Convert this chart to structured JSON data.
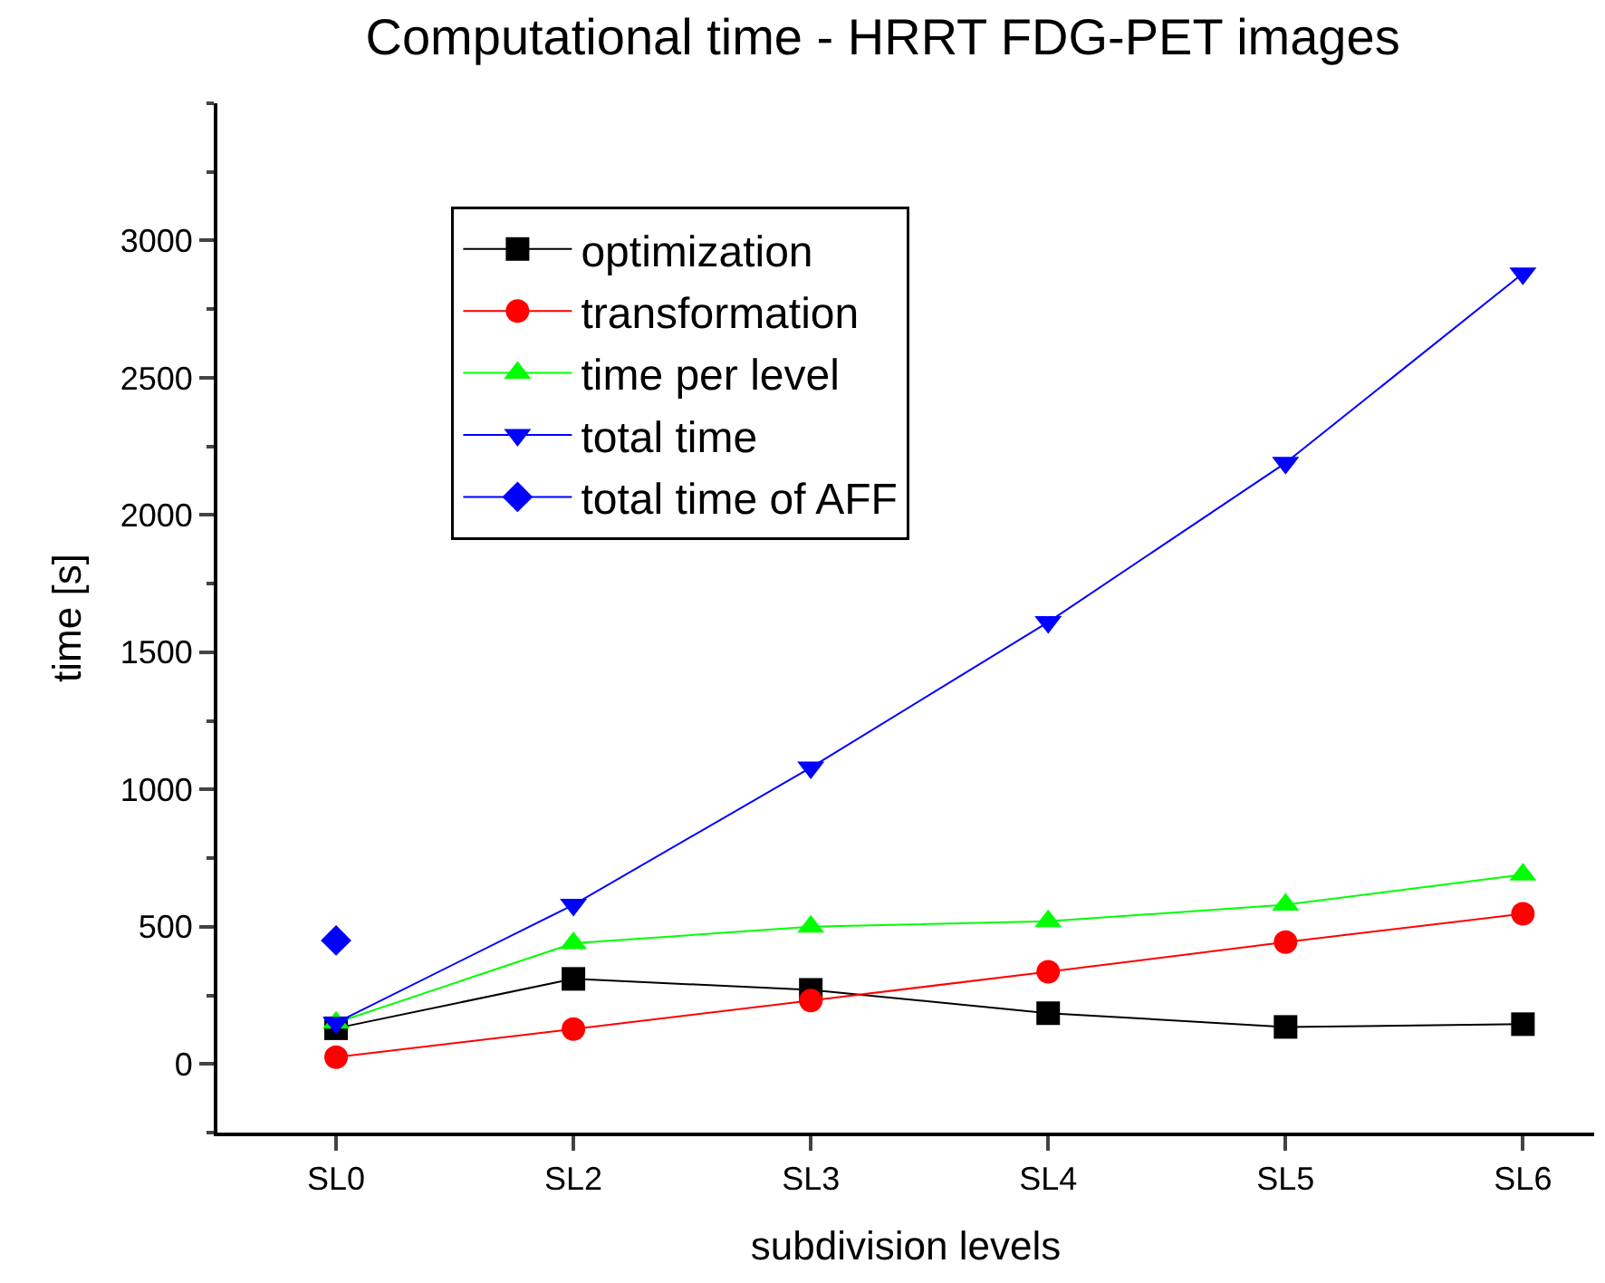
{
  "chart_data": {
    "type": "line",
    "title": "Computational time - HRRT FDG-PET images",
    "xlabel": "subdivision levels",
    "ylabel": "time [s]",
    "categories": [
      "SL0",
      "SL2",
      "SL3",
      "SL4",
      "SL5",
      "SL6"
    ],
    "ylim": [
      -250,
      3500
    ],
    "yticks": [
      0,
      500,
      1000,
      1500,
      2000,
      2500,
      3000
    ],
    "legend": "top left",
    "line_style": "solid",
    "series": [
      {
        "name": "optimization",
        "color": "#000000",
        "marker": "square",
        "values": [
          130,
          310,
          270,
          185,
          135,
          145
        ]
      },
      {
        "name": "transformation",
        "color": "#ff0000",
        "marker": "circle",
        "values": [
          25,
          127,
          231,
          336,
          444,
          547
        ]
      },
      {
        "name": "time per level",
        "color": "#00ff00",
        "marker": "triangle",
        "values": [
          150,
          440,
          500,
          520,
          580,
          690
        ]
      },
      {
        "name": "total time",
        "color": "#0000ff",
        "marker": "triangle-down",
        "values": [
          150,
          580,
          1080,
          1610,
          2190,
          2880
        ]
      },
      {
        "name": "total time of AFF",
        "color": "#0000ff",
        "marker": "diamond",
        "values": [
          450,
          null,
          null,
          null,
          null,
          null
        ]
      }
    ]
  }
}
